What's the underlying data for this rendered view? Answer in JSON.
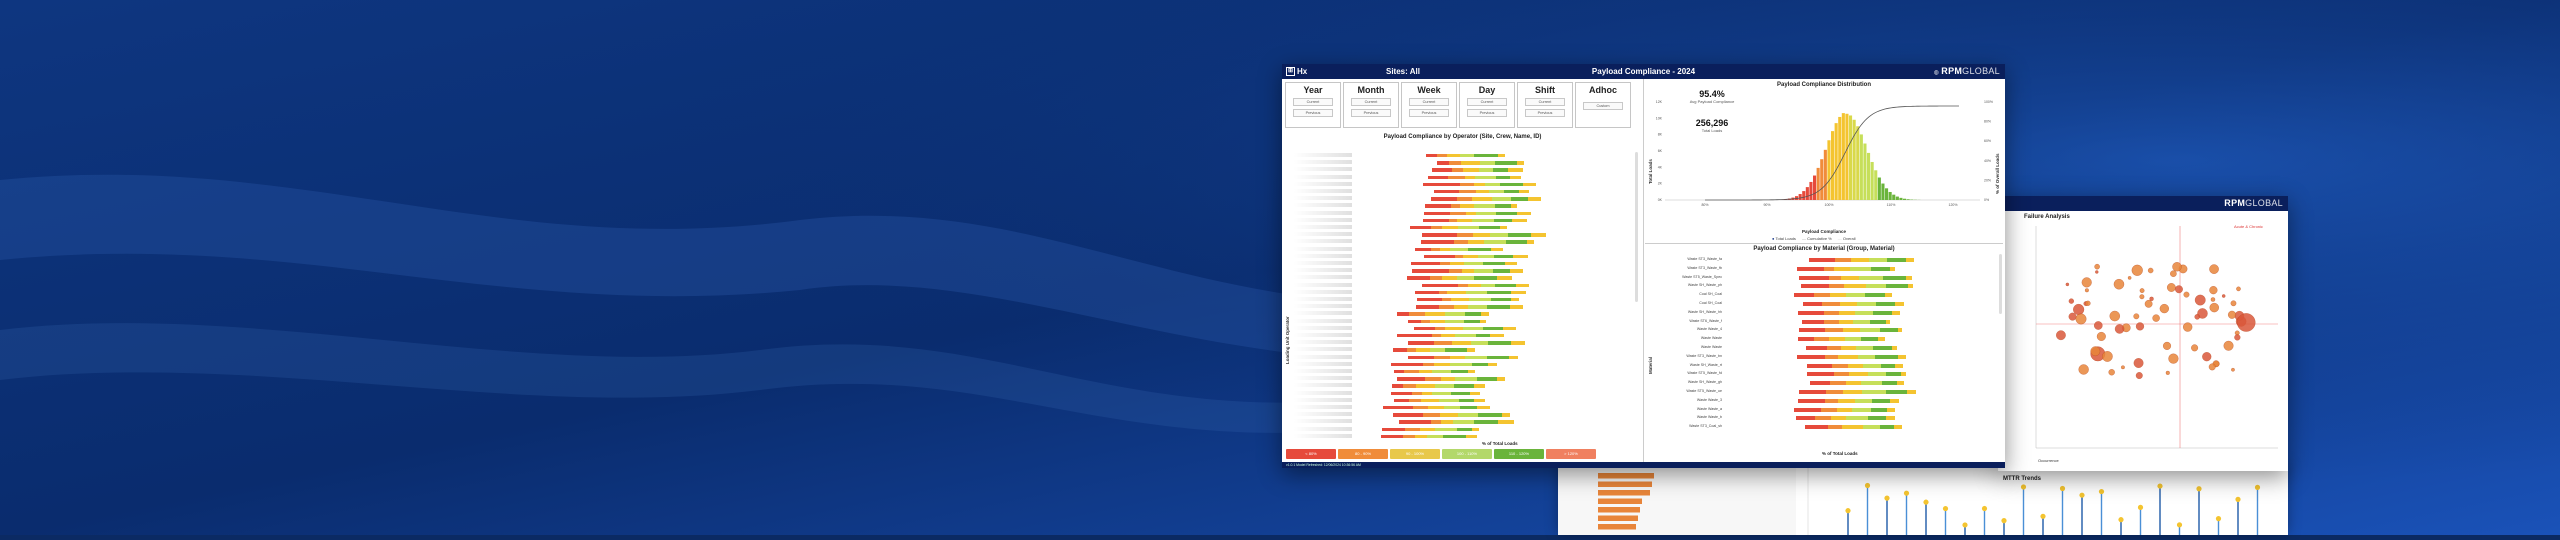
{
  "main_window": {
    "logo_text": "Hx",
    "sites": "Sites: All",
    "title": "Payload Compliance - 2024",
    "brand_a": "RPM",
    "brand_b": "GLOBAL",
    "filters": [
      {
        "label": "Year",
        "b1": "Current",
        "b2": "Previous"
      },
      {
        "label": "Month",
        "b1": "Current",
        "b2": "Previous"
      },
      {
        "label": "Week",
        "b1": "Current",
        "b2": "Previous"
      },
      {
        "label": "Day",
        "b1": "Current",
        "b2": "Previous"
      },
      {
        "label": "Shift",
        "b1": "Current",
        "b2": "Previous"
      },
      {
        "label": "Adhoc",
        "b1": "Custom",
        "b2": ""
      }
    ],
    "operator_chart_title": "Payload Compliance by Operator (Site, Crew, Name, ID)",
    "operator_axis_title": "Loading Unit Operator",
    "operator_x_label": "% of Total Loads",
    "distribution_title": "Payload Compliance Distribution",
    "kpi_avg_value": "95.4%",
    "kpi_avg_label": "Avg Payload Compliance",
    "kpi_total_value": "256,296",
    "kpi_total_label": "Total Loads",
    "dist_y_label": "Total Loads",
    "dist_y2_label": "% of Overall Loads",
    "dist_x_label": "Payload Compliance",
    "dist_legend": [
      "Total Loads",
      "Cumulative %",
      "Overall"
    ],
    "dist_x_ticks": [
      "80%",
      "90%",
      "100%",
      "110%",
      "120%"
    ],
    "dist_y_ticks": [
      "0K",
      "2K",
      "4K",
      "6K",
      "8K",
      "10K",
      "12K"
    ],
    "dist_y2_ticks": [
      "0%",
      "20%",
      "40%",
      "60%",
      "80%",
      "100%"
    ],
    "material_chart_title": "Payload Compliance by Material (Group, Material)",
    "material_axis_title": "Material",
    "material_x_label": "% of Total Loads",
    "bottom_buttons": [
      "< 80%",
      "80 - 90%",
      "90 - 100%",
      "100 - 110%",
      "110 - 120%",
      "> 120%"
    ],
    "footer": "v1.0.1  Model Refreshed: 12/06/2024 10:36:56 AM"
  },
  "window2": {
    "brand_a": "RPM",
    "brand_b": "GLOBAL",
    "title": "Failure Analysis",
    "x_label": "Occurrence",
    "legend": "Acute & Chronic"
  },
  "window3": {
    "title": "MTTR Trends"
  },
  "colors": {
    "red": "#e64a3b",
    "orange": "#f08c3a",
    "yellow": "#f4c430",
    "lightgreen": "#c6df5a",
    "green": "#6ab43b",
    "navy": "#0a1f5c"
  },
  "chart_data": [
    {
      "type": "bar",
      "title": "Payload Compliance by Operator (Site, Crew, Name, ID)",
      "categories_count": 40,
      "series": [
        {
          "name": "< 80%"
        },
        {
          "name": "80 - 90%"
        },
        {
          "name": "90 - 100%"
        },
        {
          "name": "100 - 110%"
        },
        {
          "name": "110 - 120%"
        },
        {
          "name": "> 120%"
        }
      ]
    },
    {
      "type": "bar",
      "title": "Payload Compliance Distribution",
      "x_range": [
        70,
        130
      ],
      "y_range": [
        0,
        12000
      ],
      "series": [
        {
          "name": "Total Loads"
        },
        {
          "name": "Cumulative %"
        }
      ]
    },
    {
      "type": "bar",
      "title": "Payload Compliance by Material (Group, Material)",
      "categories": [
        "Waste ST3_Waste_fa",
        "Waste ST3_Waste_fb",
        "Waste ST5_Waste_Spec",
        "Waste SH_Waste_ph",
        "Coal SH_Coal",
        "Coal SH_Coal",
        "Waste SH_Waste_hh",
        "Waste ST6_Waste_f",
        "Waste Waste_4",
        "Waste Waste",
        "Waste Waste",
        "Waste ST3_Waste_bn",
        "Waste SH_Waste_rt",
        "Waste ST5_Waste_fd",
        "Waste SH_Waste_gh",
        "Waste ST5_Waste_ue",
        "Waste Waste_3",
        "Waste Waste_a",
        "Waste Waste_b",
        "Waste ST3_Coal_sh"
      ]
    }
  ]
}
